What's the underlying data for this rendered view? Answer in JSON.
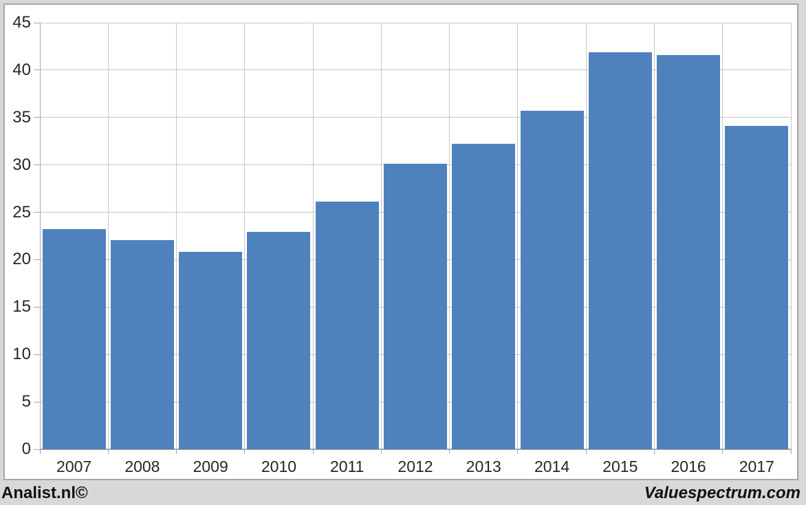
{
  "chart_data": {
    "type": "bar",
    "title": "",
    "categories": [
      "2007",
      "2008",
      "2009",
      "2010",
      "2011",
      "2012",
      "2013",
      "2014",
      "2015",
      "2016",
      "2017"
    ],
    "values": [
      23.2,
      22.1,
      20.8,
      22.9,
      26.1,
      30.1,
      32.2,
      35.7,
      41.9,
      41.6,
      34.1
    ],
    "xlabel": "",
    "ylabel": "",
    "ylim": [
      0,
      45
    ],
    "yticks": [
      0,
      5,
      10,
      15,
      20,
      25,
      30,
      35,
      40,
      45
    ],
    "grid": true,
    "legend": "none",
    "bar_color": "#4F81BD",
    "plot_background": "#FFFFFF",
    "page_background": "#D8D8D8",
    "frame_border_color": "#A6A6A6",
    "gridline_color": "#C6C6C6",
    "axis_color": "#A6A6A6",
    "tick_label_color": "#262626"
  },
  "footer": {
    "left": "Analist.nl©",
    "right": "Valuespectrum.com"
  }
}
